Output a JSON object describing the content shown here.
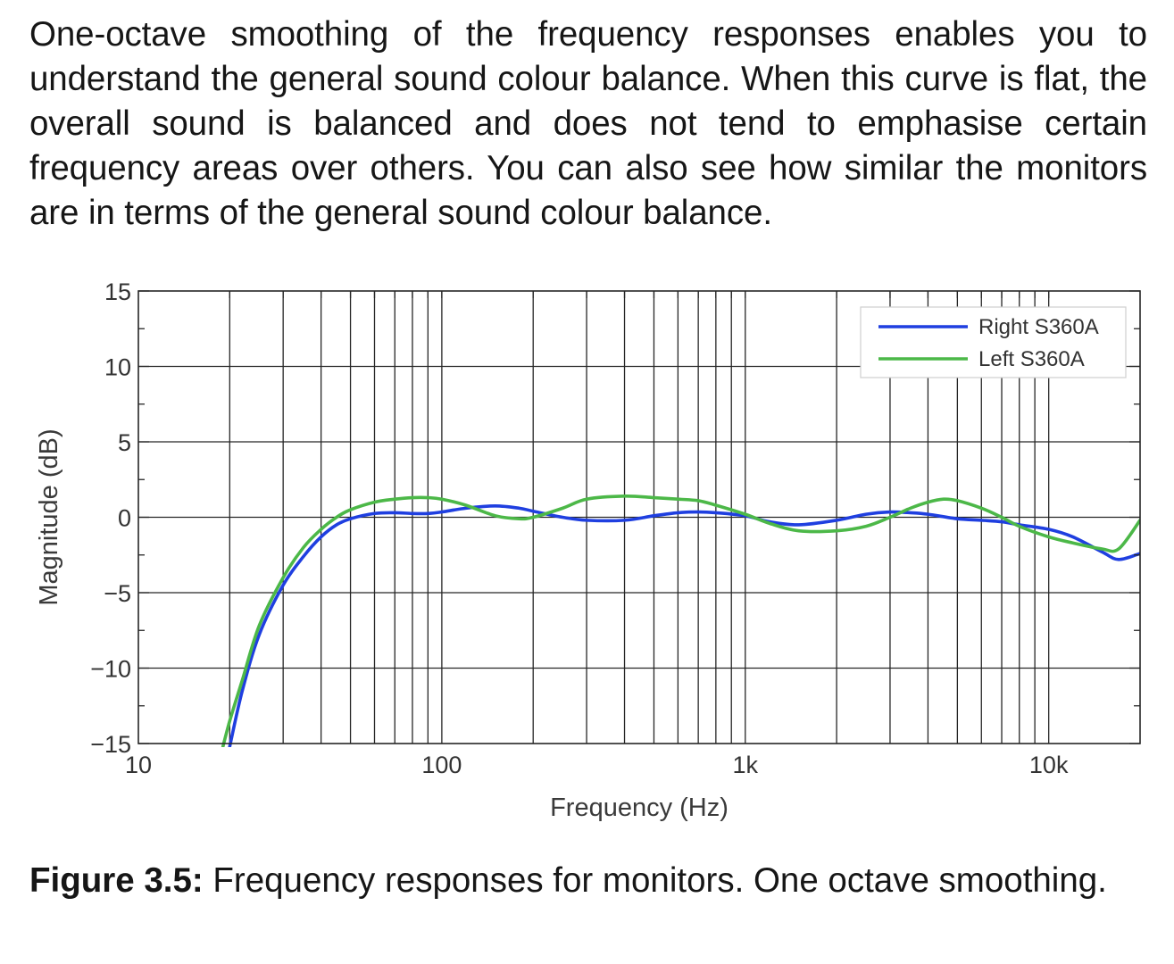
{
  "body_text": "One-octave smoothing of the frequency responses enables you to understand the general sound colour balance. When this curve is flat, the overall sound is balanced and does not tend to emphasise certain frequency areas over others. You can also see how similar the monitors are in terms of the general sound colour balance.",
  "caption": {
    "label": "Figure 3.5:",
    "text": "Frequency responses for monitors. One octave smoothing."
  },
  "colors": {
    "right": "#1f3fe0",
    "left": "#4cb848",
    "axis": "#262626",
    "grid": "#262626"
  },
  "chart_data": {
    "type": "line",
    "xlabel": "Frequency (Hz)",
    "ylabel": "Magnitude (dB)",
    "xscale": "log",
    "xlim": [
      10,
      20000
    ],
    "ylim": [
      -15,
      15
    ],
    "xticks": [
      {
        "value": 10,
        "label": "10"
      },
      {
        "value": 100,
        "label": "100"
      },
      {
        "value": 1000,
        "label": "1k"
      },
      {
        "value": 10000,
        "label": "10k"
      }
    ],
    "yticks": [
      {
        "value": 15,
        "label": "15"
      },
      {
        "value": 10,
        "label": "10"
      },
      {
        "value": 5,
        "label": "5"
      },
      {
        "value": 0,
        "label": "0"
      },
      {
        "value": -5,
        "label": "−5"
      },
      {
        "value": -10,
        "label": "−10"
      },
      {
        "value": -15,
        "label": "−15"
      }
    ],
    "grid": true,
    "legend": "top-right",
    "series": [
      {
        "name": "Right S360A",
        "color": "#1f3fe0",
        "x": [
          20,
          22,
          25,
          30,
          35,
          40,
          45,
          50,
          60,
          70,
          80,
          90,
          100,
          120,
          150,
          180,
          200,
          250,
          300,
          400,
          500,
          600,
          700,
          800,
          1000,
          1200,
          1500,
          2000,
          2500,
          3000,
          3500,
          4000,
          5000,
          6000,
          7000,
          8000,
          10000,
          12000,
          15000,
          17000,
          20000
        ],
        "y": [
          -15.2,
          -11.5,
          -7.8,
          -4.5,
          -2.6,
          -1.3,
          -0.5,
          -0.1,
          0.25,
          0.3,
          0.25,
          0.25,
          0.35,
          0.6,
          0.75,
          0.6,
          0.4,
          0.0,
          -0.2,
          -0.2,
          0.1,
          0.3,
          0.35,
          0.3,
          0.1,
          -0.3,
          -0.5,
          -0.2,
          0.2,
          0.35,
          0.3,
          0.2,
          -0.1,
          -0.2,
          -0.3,
          -0.5,
          -0.8,
          -1.3,
          -2.3,
          -2.8,
          -2.4
        ]
      },
      {
        "name": "Left S360A",
        "color": "#4cb848",
        "x": [
          19,
          20,
          22,
          25,
          30,
          35,
          40,
          45,
          50,
          60,
          70,
          80,
          90,
          100,
          120,
          150,
          180,
          200,
          250,
          300,
          400,
          500,
          600,
          700,
          800,
          1000,
          1200,
          1500,
          2000,
          2500,
          3000,
          3500,
          4000,
          4500,
          5000,
          6000,
          7000,
          8000,
          10000,
          12000,
          15000,
          17000,
          20000
        ],
        "y": [
          -15.2,
          -13.5,
          -10.8,
          -7.2,
          -4.0,
          -2.0,
          -0.8,
          0.0,
          0.5,
          1.0,
          1.2,
          1.3,
          1.3,
          1.2,
          0.8,
          0.1,
          -0.1,
          0.0,
          0.6,
          1.2,
          1.4,
          1.3,
          1.2,
          1.1,
          0.8,
          0.2,
          -0.4,
          -0.9,
          -0.9,
          -0.6,
          0.0,
          0.6,
          1.0,
          1.2,
          1.1,
          0.6,
          0.0,
          -0.6,
          -1.3,
          -1.7,
          -2.1,
          -2.1,
          -0.2
        ]
      }
    ]
  }
}
